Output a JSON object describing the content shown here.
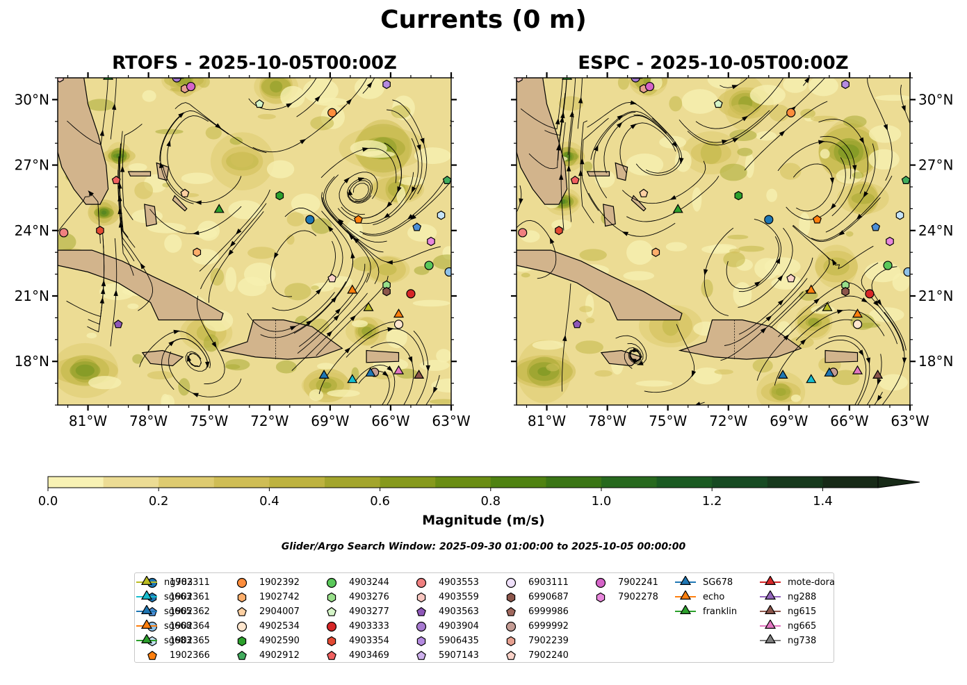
{
  "figure": {
    "suptitle": "Currents (0 m)",
    "search_window": "Glider/Argo Search Window: 2025-09-30 01:00:00 to 2025-10-05 00:00:00"
  },
  "colors": {
    "land": "#d2b48c",
    "marker_edge": "#000000",
    "streamline": "#000000"
  },
  "chart_data": {
    "type": "map-streamplot",
    "panels": [
      {
        "id": "rtofs",
        "title": "RTOFS - 2025-10-05T00:00Z",
        "lon_range": [
          -82.5,
          -63
        ],
        "lat_range": [
          16,
          31
        ],
        "xticks": [
          -81,
          -78,
          -75,
          -72,
          -69,
          -66,
          -63
        ],
        "xtick_labels": [
          "81°W",
          "78°W",
          "75°W",
          "72°W",
          "69°W",
          "66°W",
          "63°W"
        ],
        "yticks": [
          18,
          21,
          24,
          27,
          30
        ],
        "ytick_labels": [
          "18°N",
          "21°N",
          "24°N",
          "27°N",
          "30°N"
        ],
        "ylabel_side": "left"
      },
      {
        "id": "espc",
        "title": "ESPC - 2025-10-05T00:00Z",
        "lon_range": [
          -82.5,
          -63
        ],
        "lat_range": [
          16,
          31
        ],
        "xticks": [
          -81,
          -78,
          -75,
          -72,
          -69,
          -66,
          -63
        ],
        "xtick_labels": [
          "81°W",
          "78°W",
          "75°W",
          "72°W",
          "69°W",
          "66°W",
          "63°W"
        ],
        "yticks": [
          18,
          21,
          24,
          27,
          30
        ],
        "ytick_labels": [
          "18°N",
          "21°N",
          "24°N",
          "27°N",
          "30°N"
        ],
        "ylabel_side": "right"
      }
    ],
    "colorbar": {
      "label": "Magnitude (m/s)",
      "min": 0,
      "max": 1.5,
      "extend": "max",
      "ticks": [
        0.0,
        0.2,
        0.4,
        0.6,
        0.8,
        1.0,
        1.2,
        1.4
      ],
      "tick_labels": [
        "0.0",
        "0.2",
        "0.4",
        "0.6",
        "0.8",
        "1.0",
        "1.2",
        "1.4"
      ],
      "levels": [
        0,
        0.1,
        0.2,
        0.3,
        0.4,
        0.5,
        0.6,
        0.7,
        0.8,
        0.9,
        1.0,
        1.1,
        1.2,
        1.3,
        1.4,
        1.5
      ],
      "colors": [
        "#f8f2b4",
        "#ecdc94",
        "#decb70",
        "#cfbd55",
        "#bdb23f",
        "#a3a52c",
        "#86991c",
        "#6a8d13",
        "#4f8211",
        "#3a7515",
        "#27691e",
        "#1a5a22",
        "#164a22",
        "#16391c",
        "#172a17"
      ]
    },
    "platforms": [
      {
        "name": "1902311",
        "shape": "circle",
        "color": "#1f77b4",
        "lon": -70.0,
        "lat": 24.5
      },
      {
        "name": "1902361",
        "shape": "hexagon",
        "color": "#1f77b4",
        "lon": null,
        "lat": null
      },
      {
        "name": "1902362",
        "shape": "pentagon",
        "color": "#4c8fd6",
        "lon": -64.7,
        "lat": 24.15
      },
      {
        "name": "1902364",
        "shape": "circle",
        "color": "#8ec1e8",
        "lon": -63.1,
        "lat": 22.1
      },
      {
        "name": "1902365",
        "shape": "hexagon",
        "color": "#c6e4f7",
        "lon": -63.5,
        "lat": 24.7
      },
      {
        "name": "1902366",
        "shape": "pentagon",
        "color": "#ff7f0e",
        "lon": -67.6,
        "lat": 24.5
      },
      {
        "name": "1902392",
        "shape": "circle",
        "color": "#fd8d3c",
        "lon": -68.9,
        "lat": 29.4
      },
      {
        "name": "1902742",
        "shape": "hexagon",
        "color": "#fdae6b",
        "lon": -75.6,
        "lat": 23.0
      },
      {
        "name": "2904007",
        "shape": "pentagon",
        "color": "#fdd0a2",
        "lon": -76.2,
        "lat": 25.7
      },
      {
        "name": "4902534",
        "shape": "circle",
        "color": "#fee6ce",
        "lon": -65.6,
        "lat": 19.7
      },
      {
        "name": "4902590",
        "shape": "hexagon",
        "color": "#2ca02c",
        "lon": -71.5,
        "lat": 25.6
      },
      {
        "name": "4902912",
        "shape": "pentagon",
        "color": "#41ab5d",
        "lon": -63.2,
        "lat": 26.3
      },
      {
        "name": "4903244",
        "shape": "circle",
        "color": "#5ac85a",
        "lon": -64.1,
        "lat": 22.4
      },
      {
        "name": "4903276",
        "shape": "hexagon",
        "color": "#98df8a",
        "lon": -66.2,
        "lat": 21.5
      },
      {
        "name": "4903277",
        "shape": "pentagon",
        "color": "#d5f5c8",
        "lon": -72.5,
        "lat": 29.8
      },
      {
        "name": "4903333",
        "shape": "circle",
        "color": "#d62728",
        "lon": -65.0,
        "lat": 21.1
      },
      {
        "name": "4903354",
        "shape": "hexagon",
        "color": "#e34a33",
        "lon": -80.4,
        "lat": 24.0
      },
      {
        "name": "4903469",
        "shape": "pentagon",
        "color": "#f06060",
        "lon": -79.6,
        "lat": 26.3
      },
      {
        "name": "4903553",
        "shape": "circle",
        "color": "#f08080",
        "lon": -82.2,
        "lat": 23.9
      },
      {
        "name": "4903559",
        "shape": "hexagon",
        "color": "#f8c6c0",
        "lon": -82.4,
        "lat": 31.0
      },
      {
        "name": "4903563",
        "shape": "pentagon",
        "color": "#8e57b8",
        "lon": -79.5,
        "lat": 19.7
      },
      {
        "name": "4903904",
        "shape": "circle",
        "color": "#a77ad0",
        "lon": -76.6,
        "lat": 31.0
      },
      {
        "name": "5906435",
        "shape": "hexagon",
        "color": "#b48ae0",
        "lon": -66.2,
        "lat": 30.7
      },
      {
        "name": "5907143",
        "shape": "pentagon",
        "color": "#cdb0ec",
        "lon": null,
        "lat": null
      },
      {
        "name": "6903111",
        "shape": "circle",
        "color": "#efe0fa",
        "lon": null,
        "lat": null
      },
      {
        "name": "6990687",
        "shape": "hexagon",
        "color": "#8c564b",
        "lon": -66.2,
        "lat": 21.2
      },
      {
        "name": "6999986",
        "shape": "pentagon",
        "color": "#a0685d",
        "lon": null,
        "lat": null
      },
      {
        "name": "6999992",
        "shape": "circle",
        "color": "#c49c94",
        "lon": -66.8,
        "lat": 17.5
      },
      {
        "name": "7902239",
        "shape": "hexagon",
        "color": "#e6a090",
        "lon": -76.2,
        "lat": 30.5
      },
      {
        "name": "7902240",
        "shape": "pentagon",
        "color": "#fad2c8",
        "lon": -68.9,
        "lat": 21.8
      },
      {
        "name": "7902241",
        "shape": "circle",
        "color": "#d564c8",
        "lon": -75.9,
        "lat": 30.6
      },
      {
        "name": "7902278",
        "shape": "hexagon",
        "color": "#e887dc",
        "lon": -64.0,
        "lat": 23.5
      },
      {
        "name": "SG678",
        "shape": "triangle",
        "color": "#1f77b4",
        "lon": -67.0,
        "lat": 17.4,
        "line": true
      },
      {
        "name": "echo",
        "shape": "triangle",
        "color": "#ff7f0e",
        "lon": -65.6,
        "lat": 20.1,
        "line": true
      },
      {
        "name": "franklin",
        "shape": "triangle",
        "color": "#2ca02c",
        "lon": -80.0,
        "lat": 31.0,
        "line": true
      },
      {
        "name": "mote-dora",
        "shape": "triangle",
        "color": "#d62728",
        "lon": null,
        "lat": null,
        "line": true
      },
      {
        "name": "ng288",
        "shape": "triangle",
        "color": "#9467bd",
        "lon": -76.5,
        "lat": 31.05,
        "line": true
      },
      {
        "name": "ng615",
        "shape": "triangle",
        "color": "#8c564b",
        "lon": -64.6,
        "lat": 17.3,
        "line": true
      },
      {
        "name": "ng665",
        "shape": "triangle",
        "color": "#e377c2",
        "lon": -65.6,
        "lat": 17.5,
        "line": true
      },
      {
        "name": "ng738",
        "shape": "triangle",
        "color": "#7f7f7f",
        "lon": null,
        "lat": null,
        "line": true
      },
      {
        "name": "ng783",
        "shape": "triangle",
        "color": "#bcbd22",
        "lon": -67.1,
        "lat": 20.4,
        "line": true
      },
      {
        "name": "sg663",
        "shape": "triangle",
        "color": "#17becf",
        "lon": -67.9,
        "lat": 17.1,
        "line": true
      },
      {
        "name": "sg665",
        "shape": "triangle",
        "color": "#1f77b4",
        "lon": -69.3,
        "lat": 17.3,
        "line": true
      },
      {
        "name": "sg668",
        "shape": "triangle",
        "color": "#ff7f0e",
        "lon": -67.9,
        "lat": 21.2,
        "line": true
      },
      {
        "name": "sg683",
        "shape": "triangle",
        "color": "#2ca02c",
        "lon": -74.5,
        "lat": 24.9,
        "line": true
      }
    ]
  }
}
